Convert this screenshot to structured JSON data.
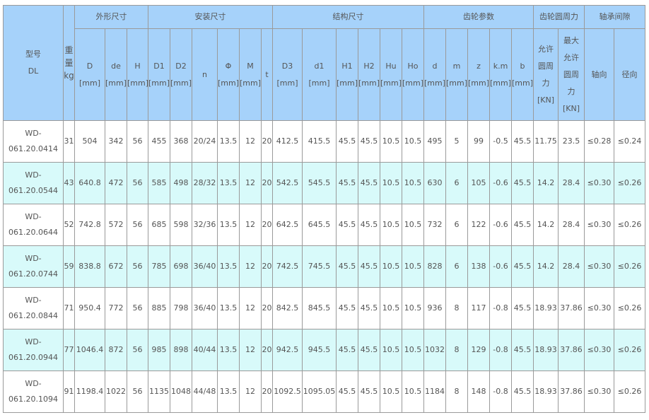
{
  "table": {
    "groups": [
      {
        "label": "外形尺寸",
        "span": 3
      },
      {
        "label": "安装尺寸",
        "span": 6
      },
      {
        "label": "结构尺寸",
        "span": 6
      },
      {
        "label": "齿轮参数",
        "span": 5
      },
      {
        "label": "齿轮圆周力",
        "span": 2
      },
      {
        "label": "轴承间隙",
        "span": 2
      }
    ],
    "columns": [
      "型号\nDL",
      "重\n量\nkg",
      "D\n[mm]",
      "de\n[mm]",
      "H\n[mm]",
      "D1\n[mm]",
      "D2\n[mm]",
      "n",
      "Φ\n[mm]",
      "M\n[mm]",
      "t",
      "D3\n[mm]",
      "d1\n[mm]",
      "H1\n[mm]",
      "H2\n[mm]",
      "Hu\n[mm]",
      "Ho\n[mm]",
      "d\n[mm]",
      "m\n[mm]",
      "z\n[mm]",
      "k.m\n[mm]",
      "b\n[mm]",
      "允许\n圆周\n力\n[KN]",
      "最大\n允许\n圆周\n力\n[KN]",
      "轴向",
      "径向"
    ],
    "rows": [
      [
        "WD-\n061.20.0414",
        "31",
        "504",
        "342",
        "56",
        "455",
        "368",
        "20/24",
        "13.5",
        "12",
        "20",
        "412.5",
        "415.5",
        "45.5",
        "45.5",
        "10.5",
        "10.5",
        "495",
        "5",
        "99",
        "-0.5",
        "45.5",
        "11.75",
        "23.5",
        "≤0.28",
        "≤0.24"
      ],
      [
        "WD-\n061.20.0544",
        "43",
        "640.8",
        "472",
        "56",
        "585",
        "498",
        "28/32",
        "13.5",
        "12",
        "20",
        "542.5",
        "545.5",
        "45.5",
        "45.5",
        "10.5",
        "10.5",
        "630",
        "6",
        "105",
        "-0.6",
        "45.5",
        "14.2",
        "28.4",
        "≤0.30",
        "≤0.26"
      ],
      [
        "WD-\n061.20.0644",
        "52",
        "742.8",
        "572",
        "56",
        "685",
        "598",
        "32/36",
        "13.5",
        "12",
        "20",
        "642.5",
        "645.5",
        "45.5",
        "45.5",
        "10.5",
        "10.5",
        "732",
        "6",
        "122",
        "-0.6",
        "45.5",
        "14.2",
        "28.4",
        "≤0.30",
        "≤0.26"
      ],
      [
        "WD-\n061.20.0744",
        "59",
        "838.8",
        "672",
        "56",
        "785",
        "698",
        "36/40",
        "13.5",
        "12",
        "20",
        "742.5",
        "745.5",
        "45.5",
        "45.5",
        "10.5",
        "10.5",
        "828",
        "6",
        "138",
        "-0.6",
        "45.5",
        "14.2",
        "28.4",
        "≤0.30",
        "≤0.26"
      ],
      [
        "WD-\n061.20.0844",
        "71",
        "950.4",
        "772",
        "56",
        "885",
        "798",
        "36/40",
        "13.5",
        "12",
        "20",
        "842.5",
        "845.5",
        "45.5",
        "45.5",
        "10.5",
        "10.5",
        "936",
        "8",
        "117",
        "-0.8",
        "45.5",
        "18.93",
        "37.86",
        "≤0.30",
        "≤0.26"
      ],
      [
        "WD-\n061.20.0944",
        "77",
        "1046.4",
        "872",
        "56",
        "985",
        "898",
        "40/44",
        "13.5",
        "12",
        "20",
        "942.5",
        "945.5",
        "45.5",
        "45.5",
        "10.5",
        "10.5",
        "1032",
        "8",
        "129",
        "-0.8",
        "45.5",
        "18.93",
        "37.86",
        "≤0.30",
        "≤0.26"
      ],
      [
        "WD-\n061.20.1094",
        "91",
        "1198.4",
        "1022",
        "56",
        "1135",
        "1048",
        "44/48",
        "13.5",
        "12",
        "20",
        "1092.5",
        "1095.05",
        "45.5",
        "45.5",
        "10.5",
        "10.5",
        "1184",
        "8",
        "148",
        "-0.8",
        "45.5",
        "18.93",
        "37.86",
        "≤0.30",
        "≤0.26"
      ]
    ]
  }
}
